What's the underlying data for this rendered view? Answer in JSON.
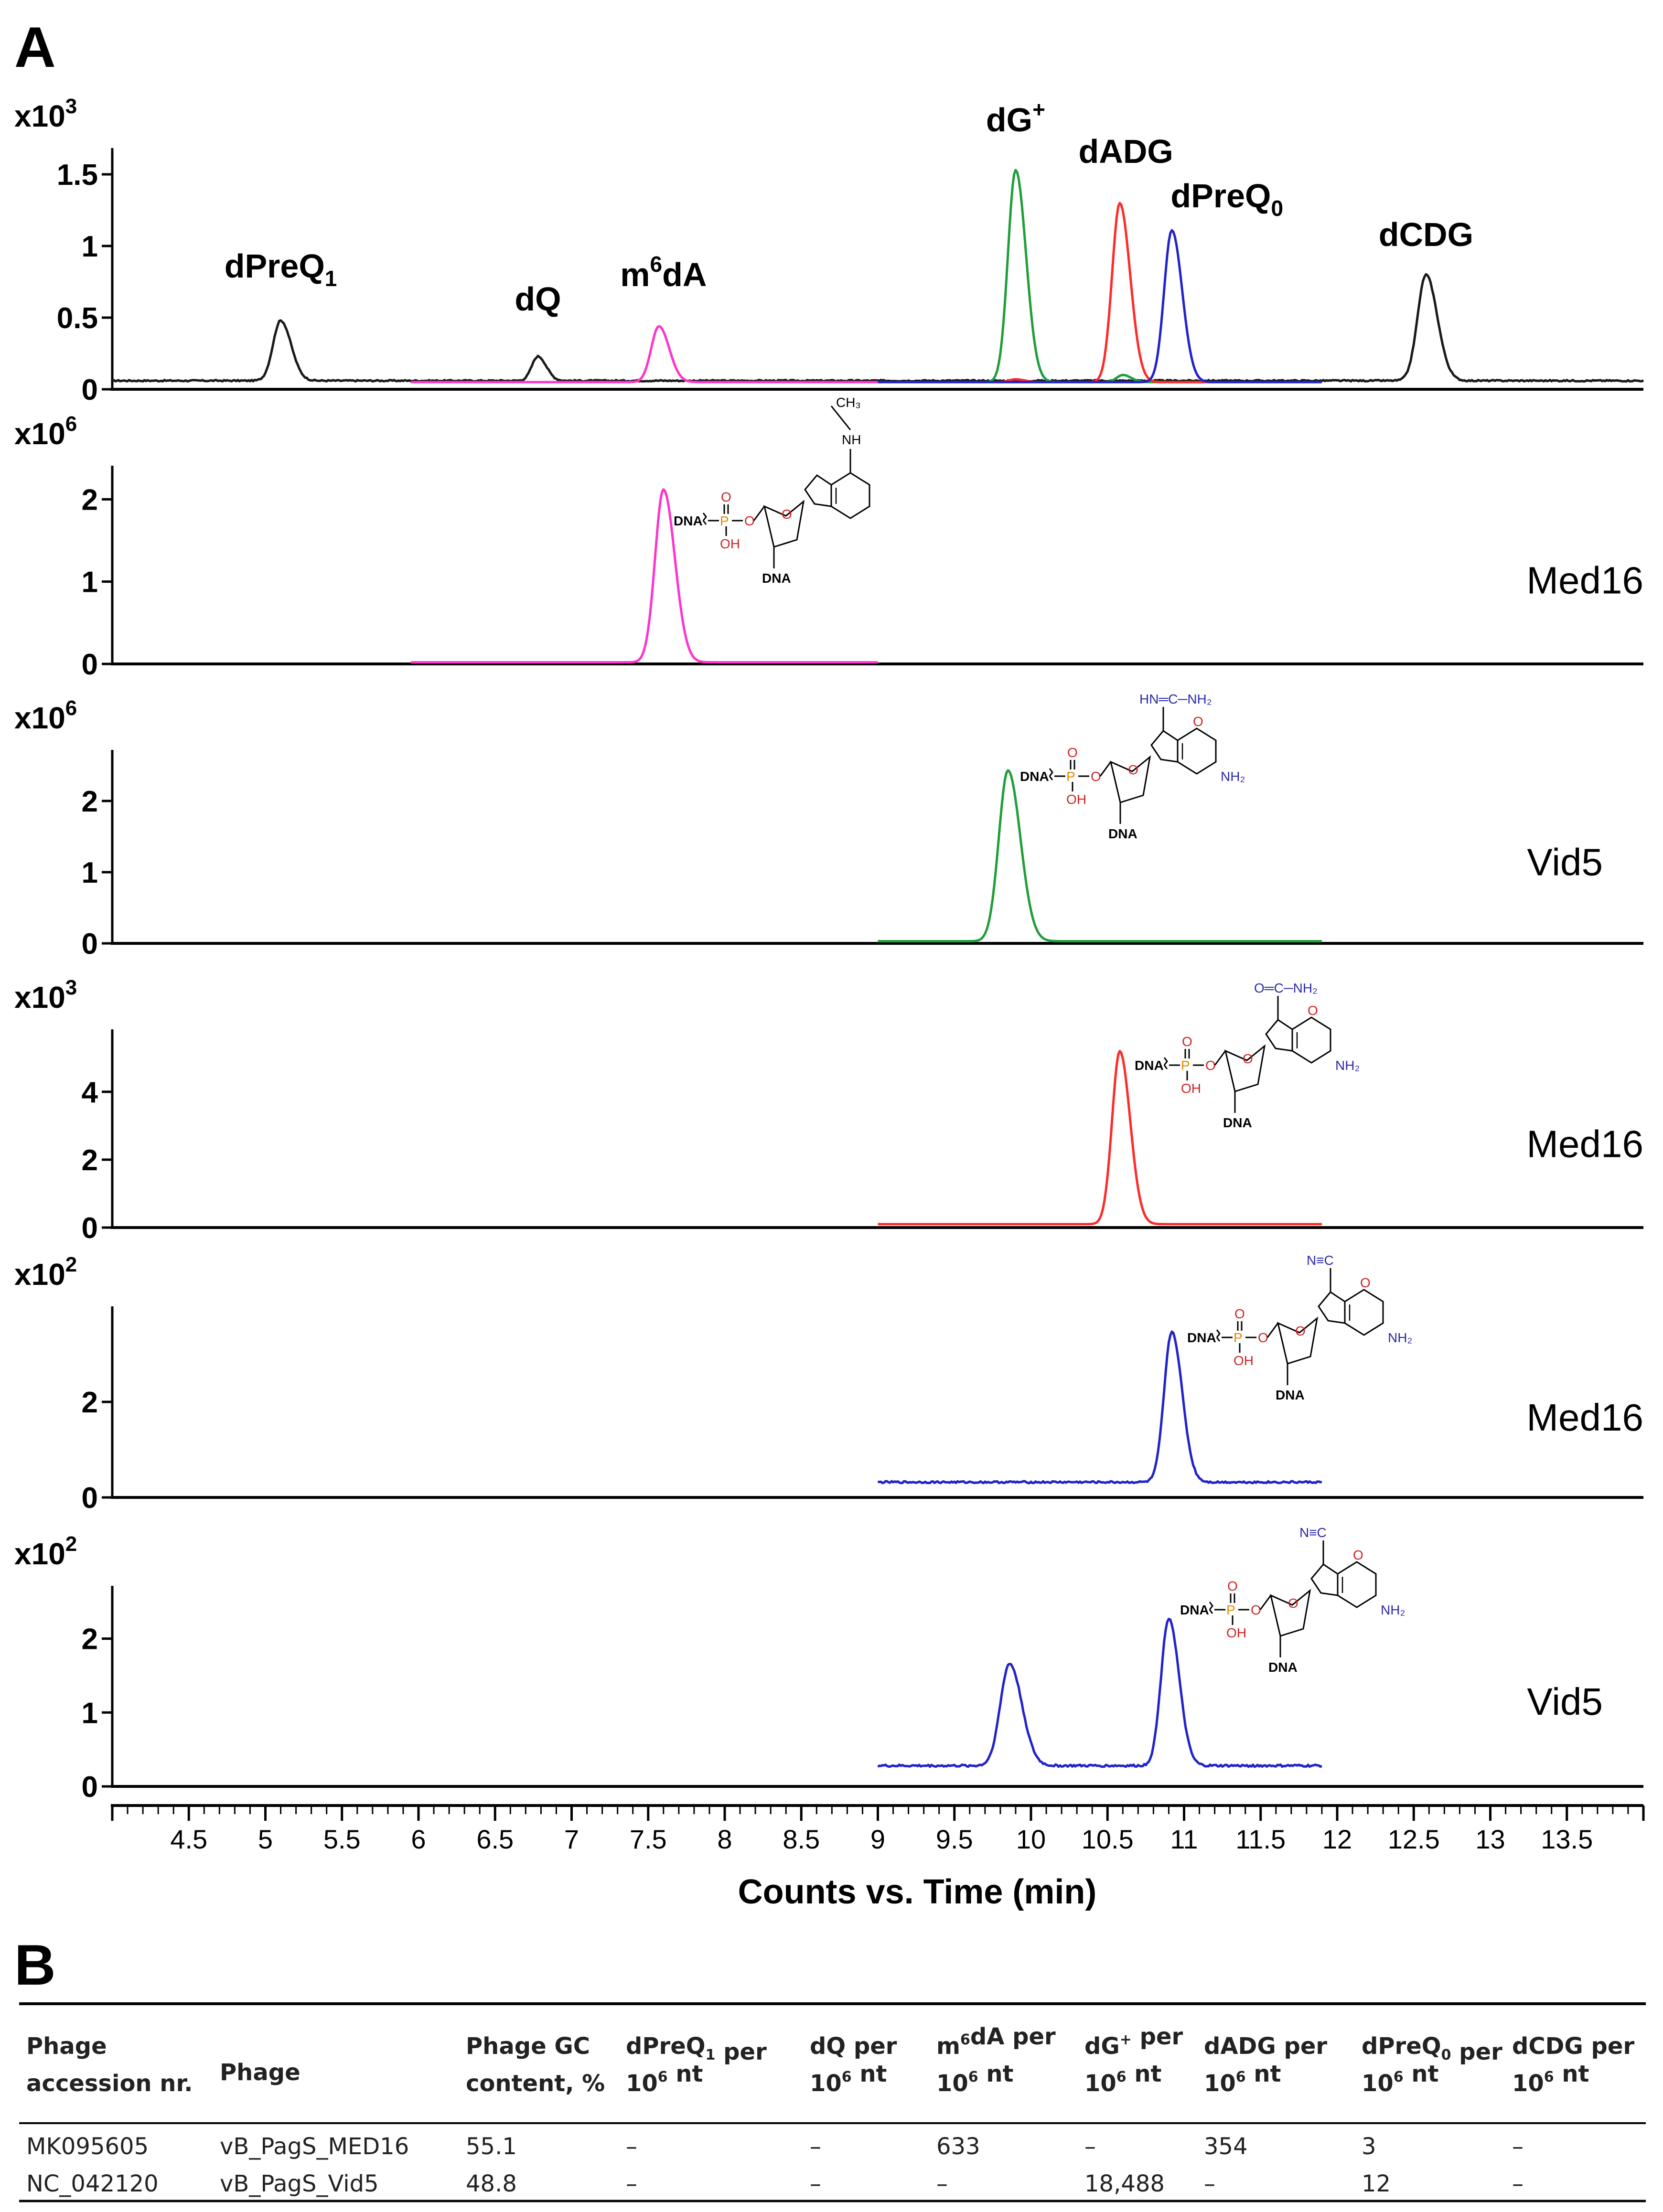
{
  "panel_a_label": "A",
  "panel_b_label": "B",
  "chart_data": {
    "type": "line",
    "title": "",
    "xlabel": "Counts vs. Time (min)",
    "xlim": [
      4,
      14
    ],
    "x_ticks": [
      "4.5",
      "5",
      "5.5",
      "6",
      "6.5",
      "7",
      "7.5",
      "8",
      "8.5",
      "9",
      "9.5",
      "10",
      "10.5",
      "11",
      "11.5",
      "12",
      "12.5",
      "13",
      "13.5"
    ],
    "colors": {
      "black": "#1a1a1a",
      "magenta": "#ff33cc",
      "green": "#1f9e3a",
      "red": "#ff2a2a",
      "blue": "#2222cc"
    },
    "panels": [
      {
        "id": "top",
        "multiplier_base": "x10",
        "multiplier_exp": "3",
        "ylim": [
          0,
          1.65
        ],
        "y_ticks": [
          "0",
          "0.5",
          "1",
          "1.5"
        ],
        "y_tick_values": [
          0,
          0.5,
          1,
          1.5
        ],
        "sample": "",
        "peak_labels": [
          {
            "base": "dPreQ",
            "sub": "1",
            "sup": "",
            "suffix": "",
            "time": 5.1,
            "height": 0.78
          },
          {
            "base": "dQ",
            "sub": "",
            "sup": "",
            "suffix": "",
            "time": 6.78,
            "height": 0.55
          },
          {
            "base": "m",
            "sub": "",
            "sup": "6",
            "suffix": "dA",
            "time": 7.6,
            "height": 0.72
          },
          {
            "base": "dG",
            "sub": "",
            "sup": "+",
            "suffix": "",
            "time": 9.9,
            "height": 1.8
          },
          {
            "base": "dADG",
            "sub": "",
            "sup": "",
            "suffix": "",
            "time": 10.62,
            "height": 1.58
          },
          {
            "base": "dPreQ",
            "sub": "0",
            "sup": "",
            "suffix": "",
            "time": 11.28,
            "height": 1.27
          },
          {
            "base": "dCDG",
            "sub": "",
            "sup": "",
            "suffix": "",
            "time": 12.58,
            "height": 1.0
          }
        ],
        "series": [
          {
            "name": "black",
            "color": "black",
            "range": [
              4,
              14
            ],
            "baseline": 0.06,
            "noise": 0.005,
            "peaks": [
              [
                5.1,
                0.42,
                0.05
              ],
              [
                6.78,
                0.17,
                0.04
              ],
              [
                12.58,
                0.74,
                0.055
              ]
            ]
          },
          {
            "name": "magenta",
            "color": "magenta",
            "range": [
              5.95,
              9.0
            ],
            "baseline": 0.05,
            "noise": 0.0,
            "peaks": [
              [
                7.57,
                0.39,
                0.05
              ]
            ]
          },
          {
            "name": "green",
            "color": "green",
            "range": [
              9.0,
              11.9
            ],
            "baseline": 0.05,
            "noise": 0.0,
            "peaks": [
              [
                9.9,
                1.48,
                0.05
              ],
              [
                10.6,
                0.05,
                0.04
              ]
            ]
          },
          {
            "name": "red",
            "color": "red",
            "range": [
              9.0,
              11.9
            ],
            "baseline": 0.05,
            "noise": 0.0,
            "peaks": [
              [
                10.58,
                1.25,
                0.05
              ],
              [
                9.9,
                0.02,
                0.04
              ]
            ]
          },
          {
            "name": "blue",
            "color": "blue",
            "range": [
              9.0,
              11.9
            ],
            "baseline": 0.05,
            "noise": 0.0,
            "peaks": [
              [
                10.92,
                1.06,
                0.05
              ]
            ]
          }
        ]
      },
      {
        "id": "m6dA",
        "multiplier_base": "x10",
        "multiplier_exp": "6",
        "ylim": [
          0,
          2.35
        ],
        "y_ticks": [
          "0",
          "1",
          "2"
        ],
        "y_tick_values": [
          0,
          1,
          2
        ],
        "sample": "Med16",
        "structure": "m6dA",
        "series": [
          {
            "name": "magenta",
            "color": "magenta",
            "range": [
              5.95,
              9.0
            ],
            "baseline": 0.02,
            "noise": 0.0,
            "peaks": [
              [
                7.6,
                2.1,
                0.055
              ]
            ]
          }
        ]
      },
      {
        "id": "dGplus",
        "multiplier_base": "x10",
        "multiplier_exp": "6",
        "ylim": [
          0,
          2.65
        ],
        "y_ticks": [
          "0",
          "1",
          "2"
        ],
        "y_tick_values": [
          0,
          1,
          2
        ],
        "sample": "Vid5",
        "structure": "dG+",
        "series": [
          {
            "name": "green",
            "color": "green",
            "range": [
              9.0,
              11.9
            ],
            "baseline": 0.03,
            "noise": 0.0,
            "peaks": [
              [
                9.85,
                2.4,
                0.06
              ]
            ]
          }
        ]
      },
      {
        "id": "dADG",
        "multiplier_base": "x10",
        "multiplier_exp": "3",
        "ylim": [
          0,
          5.7
        ],
        "y_ticks": [
          "0",
          "2",
          "4"
        ],
        "y_tick_values": [
          0,
          2,
          4
        ],
        "sample": "Med16",
        "structure": "dADG",
        "series": [
          {
            "name": "red",
            "color": "red",
            "range": [
              9.0,
              11.9
            ],
            "baseline": 0.1,
            "noise": 0.0,
            "peaks": [
              [
                10.58,
                5.1,
                0.05
              ]
            ]
          }
        ]
      },
      {
        "id": "dPreQ0-med16",
        "multiplier_base": "x10",
        "multiplier_exp": "2",
        "ylim": [
          0,
          3.9
        ],
        "y_ticks": [
          "0",
          "2"
        ],
        "y_tick_values": [
          0,
          2
        ],
        "sample": "Med16",
        "structure": "dPreQ0",
        "series": [
          {
            "name": "blue",
            "color": "blue",
            "range": [
              9.0,
              11.9
            ],
            "baseline": 0.32,
            "noise": 0.02,
            "peaks": [
              [
                10.92,
                3.15,
                0.05
              ]
            ]
          }
        ]
      },
      {
        "id": "dPreQ0-vid5",
        "multiplier_base": "x10",
        "multiplier_exp": "2",
        "ylim": [
          0,
          2.65
        ],
        "y_ticks": [
          "0",
          "1",
          "2"
        ],
        "y_tick_values": [
          0,
          1,
          2
        ],
        "sample": "Vid5",
        "structure": "dPreQ0",
        "series": [
          {
            "name": "blue",
            "color": "blue",
            "range": [
              9.0,
              11.9
            ],
            "baseline": 0.28,
            "noise": 0.015,
            "peaks": [
              [
                9.86,
                1.38,
                0.06
              ],
              [
                10.9,
                2.0,
                0.05
              ]
            ]
          }
        ]
      }
    ]
  },
  "table": {
    "headers": [
      {
        "lines": [
          [
            "Phage",
            "",
            ""
          ],
          [
            "accession nr.",
            "",
            ""
          ]
        ]
      },
      {
        "lines": [
          [
            "Phage",
            "",
            ""
          ]
        ]
      },
      {
        "lines": [
          [
            "Phage GC",
            "",
            ""
          ],
          [
            "content, %",
            "",
            ""
          ]
        ]
      },
      {
        "lines": [
          [
            "dPreQ",
            "sub",
            "1"
          ],
          [
            " per",
            "",
            ""
          ],
          [
            "|",
            "",
            ""
          ],
          [
            "10",
            "sup",
            "6"
          ],
          [
            " nt",
            "",
            ""
          ]
        ]
      },
      {
        "lines": [
          [
            "dQ per",
            "",
            ""
          ],
          [
            "|",
            "",
            ""
          ],
          [
            "10",
            "sup",
            "6"
          ],
          [
            " nt",
            "",
            ""
          ]
        ]
      },
      {
        "lines": [
          [
            "m",
            "sup",
            "6"
          ],
          [
            "dA per",
            "",
            ""
          ],
          [
            "|",
            "",
            ""
          ],
          [
            "10",
            "sup",
            "6"
          ],
          [
            " nt",
            "",
            ""
          ]
        ]
      },
      {
        "lines": [
          [
            "dG",
            "sup",
            "+"
          ],
          [
            " per",
            "",
            ""
          ],
          [
            "|",
            "",
            ""
          ],
          [
            "10",
            "sup",
            "6"
          ],
          [
            " nt",
            "",
            ""
          ]
        ]
      },
      {
        "lines": [
          [
            "dADG per",
            "",
            ""
          ],
          [
            "|",
            "",
            ""
          ],
          [
            "10",
            "sup",
            "6"
          ],
          [
            " nt",
            "",
            ""
          ]
        ]
      },
      {
        "lines": [
          [
            "dPreQ",
            "sub",
            "0"
          ],
          [
            " per",
            "",
            ""
          ],
          [
            "|",
            "",
            ""
          ],
          [
            "10",
            "sup",
            "6"
          ],
          [
            " nt",
            "",
            ""
          ]
        ]
      },
      {
        "lines": [
          [
            "dCDG per",
            "",
            ""
          ],
          [
            "|",
            "",
            ""
          ],
          [
            "10",
            "sup",
            "6"
          ],
          [
            " nt",
            "",
            ""
          ]
        ]
      }
    ],
    "rows": [
      [
        "MK095605",
        "vB_PagS_MED16",
        "55.1",
        "–",
        "–",
        "633",
        "–",
        "354",
        "3",
        "–"
      ],
      [
        "NC_042120",
        "vB_PagS_Vid5",
        "48.8",
        "–",
        "–",
        "–",
        "18,488",
        "–",
        "12",
        "–"
      ]
    ]
  }
}
